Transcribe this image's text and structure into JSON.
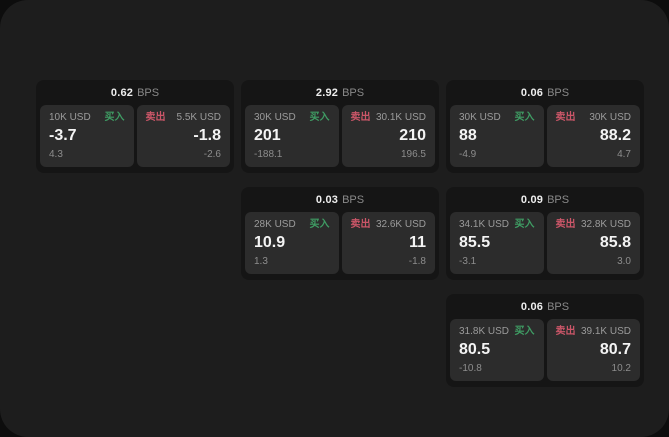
{
  "colors": {
    "page_bg": "#1d1d1d",
    "card_bg": "#151515",
    "panel_bg": "#2c2c2c",
    "buy_green": "#3f9d64",
    "sell_red": "#cb5668",
    "value_white": "#f4f4f4",
    "muted_gray": "#8d8d8d"
  },
  "labels": {
    "bps_unit": "BPS",
    "buy_tag": "买入",
    "sell_tag": "卖出"
  },
  "cards": [
    {
      "row": 0,
      "col": 0,
      "bps": "0.62",
      "buy": {
        "notional": "10K USD",
        "tag": "买入",
        "value": "-3.7",
        "sub": "4.3"
      },
      "sell": {
        "notional": "5.5K USD",
        "tag": "卖出",
        "value": "-1.8",
        "sub": "-2.6"
      }
    },
    {
      "row": 0,
      "col": 1,
      "bps": "2.92",
      "buy": {
        "notional": "30K USD",
        "tag": "买入",
        "value": "201",
        "sub": "-188.1"
      },
      "sell": {
        "notional": "30.1K USD",
        "tag": "卖出",
        "value": "210",
        "sub": "196.5"
      }
    },
    {
      "row": 0,
      "col": 2,
      "bps": "0.06",
      "buy": {
        "notional": "30K USD",
        "tag": "买入",
        "value": "88",
        "sub": "-4.9"
      },
      "sell": {
        "notional": "30K USD",
        "tag": "卖出",
        "value": "88.2",
        "sub": "4.7"
      }
    },
    {
      "row": 1,
      "col": 1,
      "bps": "0.03",
      "buy": {
        "notional": "28K USD",
        "tag": "买入",
        "value": "10.9",
        "sub": "1.3"
      },
      "sell": {
        "notional": "32.6K USD",
        "tag": "卖出",
        "value": "11",
        "sub": "-1.8"
      }
    },
    {
      "row": 1,
      "col": 2,
      "bps": "0.09",
      "buy": {
        "notional": "34.1K USD",
        "tag": "买入",
        "value": "85.5",
        "sub": "-3.1"
      },
      "sell": {
        "notional": "32.8K USD",
        "tag": "卖出",
        "value": "85.8",
        "sub": "3.0"
      }
    },
    {
      "row": 2,
      "col": 2,
      "bps": "0.06",
      "buy": {
        "notional": "31.8K USD",
        "tag": "买入",
        "value": "80.5",
        "sub": "-10.8"
      },
      "sell": {
        "notional": "39.1K USD",
        "tag": "卖出",
        "value": "80.7",
        "sub": "10.2"
      }
    }
  ],
  "layout_hint": {
    "col_lefts": [
      36,
      241,
      446
    ],
    "row_tops": [
      80,
      187,
      294
    ]
  }
}
